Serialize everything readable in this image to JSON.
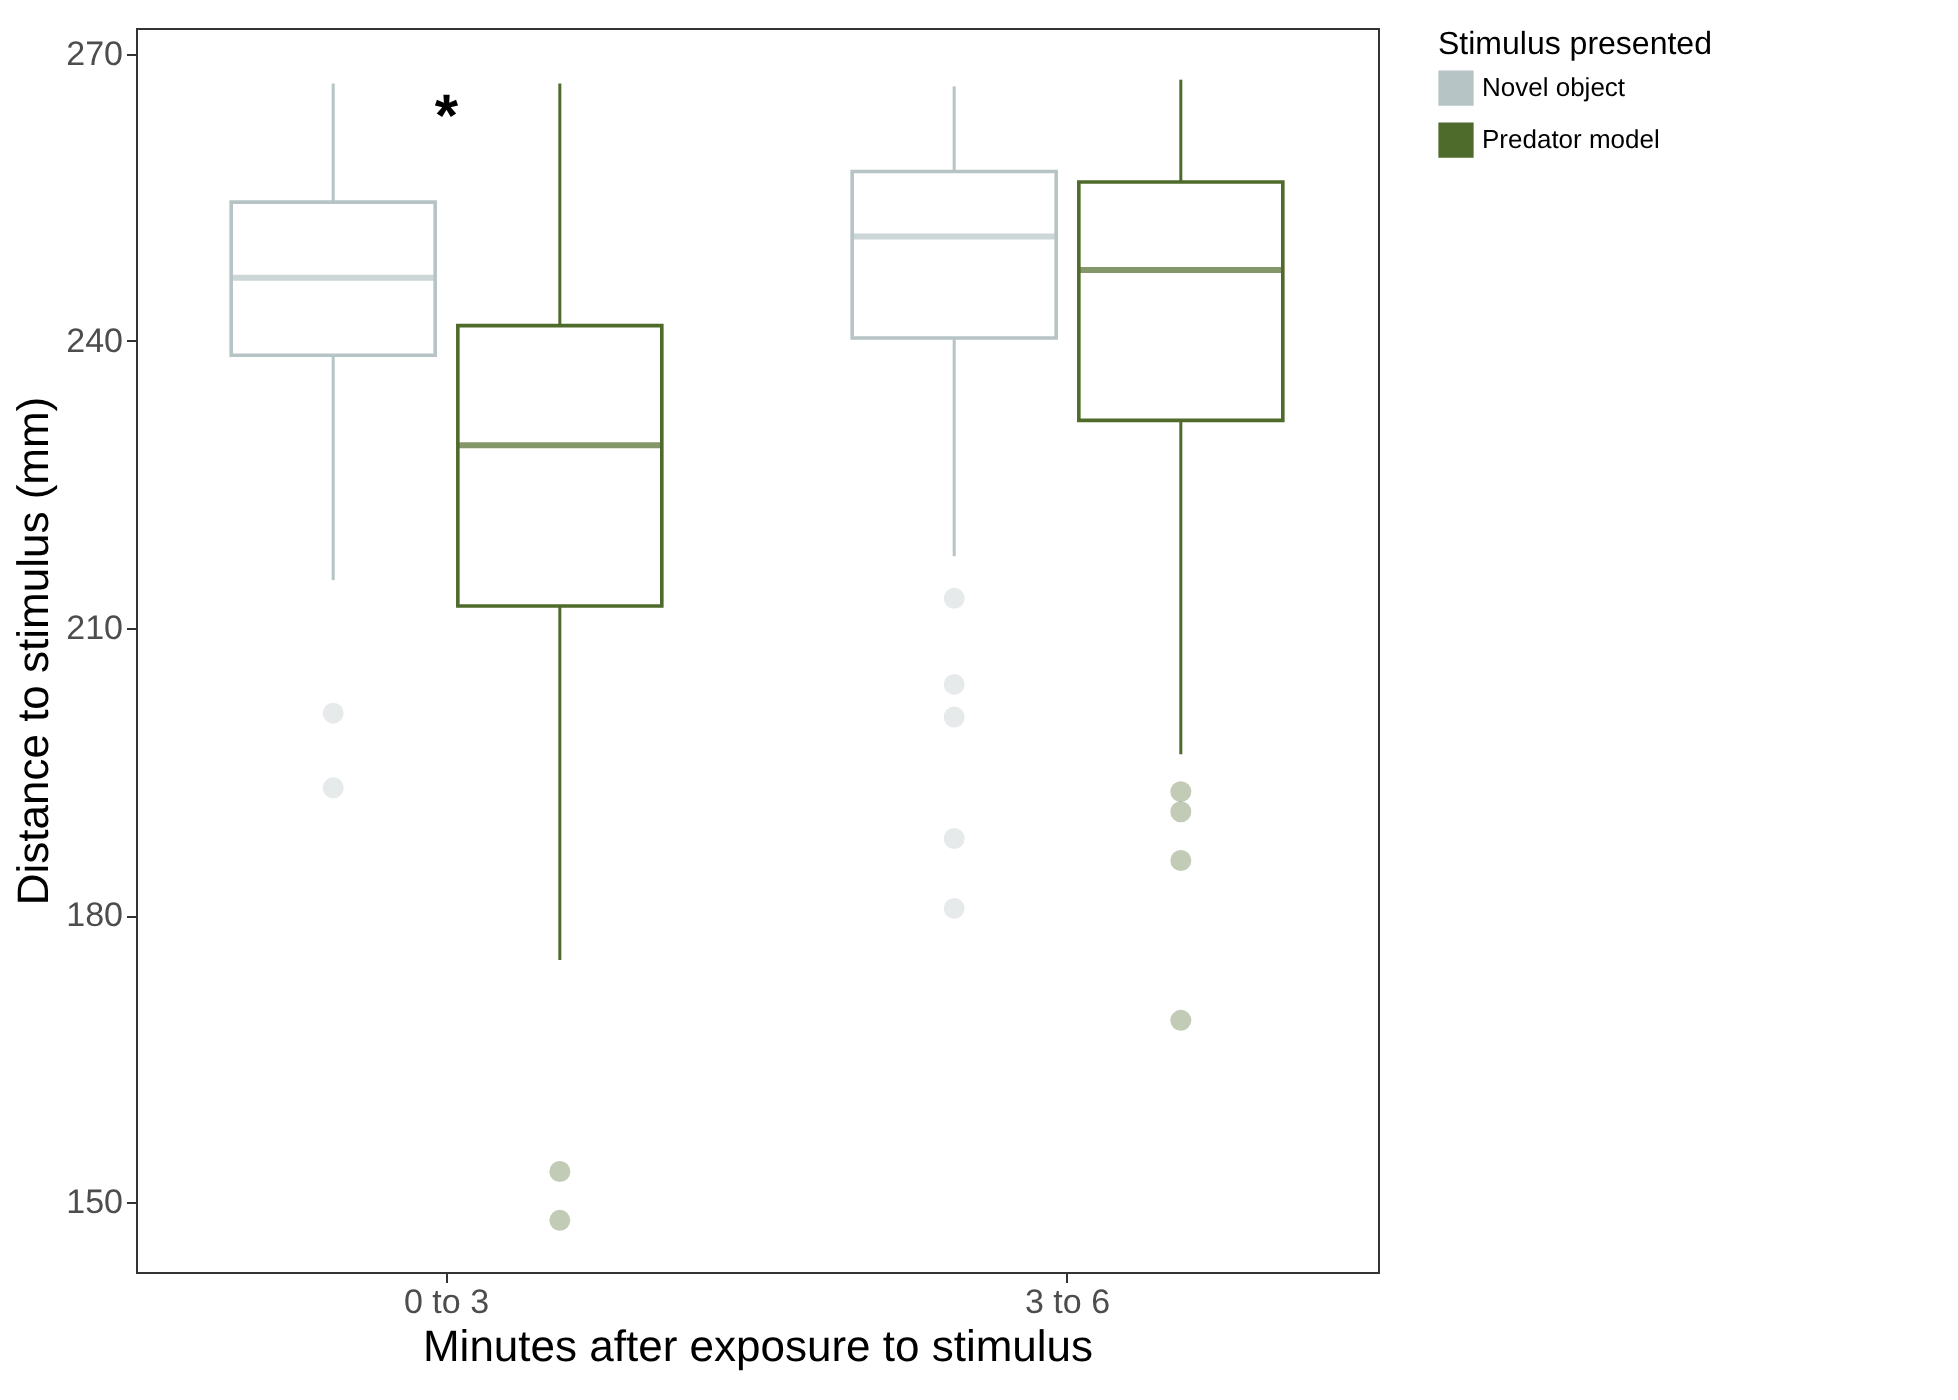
{
  "chart_data": {
    "type": "box",
    "xlabel": "Minutes after exposure to stimulus",
    "ylabel": "Distance to stimulus (mm)",
    "legend_title": "Stimulus presented",
    "legend": "right",
    "grid": false,
    "categories": [
      "0 to 3",
      "3 to 6"
    ],
    "ylim": [
      142.7,
      272.7
    ],
    "yticks": [
      150,
      180,
      210,
      240,
      270
    ],
    "series": [
      {
        "name": "Novel object",
        "color": "#b7c4c6",
        "boxes": [
          {
            "low": 215,
            "q1": 238.5,
            "median": 246.6,
            "q3": 254.5,
            "high": 266.9,
            "outliers": [
              201.1,
              193.3
            ]
          },
          {
            "low": 217.5,
            "q1": 240.3,
            "median": 250.9,
            "q3": 257.7,
            "high": 266.6,
            "outliers": [
              213.1,
              204.1,
              200.7,
              188,
              180.7
            ]
          }
        ]
      },
      {
        "name": "Predator model",
        "color": "#4f6b2c",
        "boxes": [
          {
            "low": 175.3,
            "q1": 212.3,
            "median": 229.1,
            "q3": 241.6,
            "high": 266.9,
            "outliers": [
              153.2,
              148.1
            ]
          },
          {
            "low": 196.8,
            "q1": 231.7,
            "median": 247.4,
            "q3": 256.6,
            "high": 267.3,
            "outliers": [
              192.9,
              190.8,
              185.7,
              169
            ]
          }
        ]
      }
    ],
    "annotations": [
      "*"
    ]
  }
}
